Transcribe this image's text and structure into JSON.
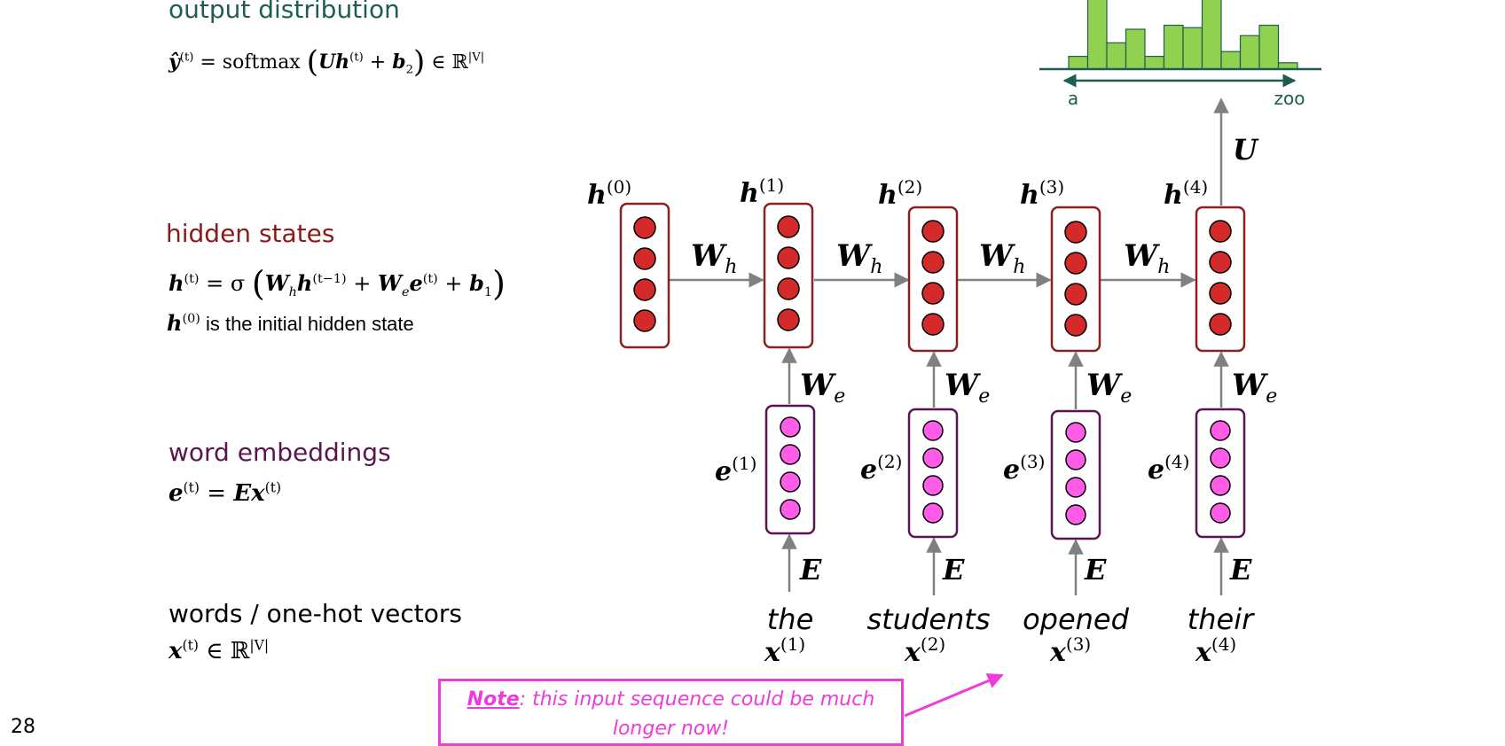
{
  "left_panel": {
    "output_title": "output distribution",
    "output_formula": {
      "yhat": "ŷ",
      "t": "(t)",
      "eq": " = softmax ",
      "lparen": "(",
      "U": "U",
      "h": "h",
      "plus": " + ",
      "b": "b",
      "two": "2",
      "rparen": ")",
      "in": " ∈ ℝ",
      "v": "|V|"
    },
    "hidden_title": "hidden states",
    "hidden_formula": {
      "h": "h",
      "t": "(t)",
      "eq": " = σ ",
      "lparen": "(",
      "W": "W",
      "sub_h": "h",
      "tm1": "(t−1)",
      "plus": " + ",
      "sub_e": "e",
      "e": "e",
      "b": "b",
      "one": "1",
      "rparen": ")"
    },
    "initial_state": {
      "h": "h",
      "zero": "(0)",
      "text": " is the initial hidden state"
    },
    "embed_title": "word embeddings",
    "embed_formula": {
      "e": "e",
      "t": "(t)",
      "eq": " = ",
      "E": "E",
      "x": "x"
    },
    "words_title": "words / one-hot vectors",
    "words_formula": {
      "x": "x",
      "t": "(t)",
      "in": " ∈ ℝ",
      "v": "|V|"
    }
  },
  "diagram": {
    "hidden_labels": [
      {
        "base": "h",
        "sup": "(0)"
      },
      {
        "base": "h",
        "sup": "(1)"
      },
      {
        "base": "h",
        "sup": "(2)"
      },
      {
        "base": "h",
        "sup": "(3)"
      },
      {
        "base": "h",
        "sup": "(4)"
      }
    ],
    "embed_labels": [
      {
        "base": "e",
        "sup": "(1)"
      },
      {
        "base": "e",
        "sup": "(2)"
      },
      {
        "base": "e",
        "sup": "(3)"
      },
      {
        "base": "e",
        "sup": "(4)"
      }
    ],
    "wh_label": {
      "base": "W",
      "sub": "h"
    },
    "we_label": {
      "base": "W",
      "sub": "e"
    },
    "e_matrix": "E",
    "u_matrix": "U",
    "words": [
      "the",
      "students",
      "opened",
      "their"
    ],
    "input_labels": [
      {
        "base": "x",
        "sup": "(1)"
      },
      {
        "base": "x",
        "sup": "(2)"
      },
      {
        "base": "x",
        "sup": "(3)"
      },
      {
        "base": "x",
        "sup": "(4)"
      }
    ],
    "histogram": {
      "axis_start": "a",
      "axis_end": "zoo",
      "values": [
        0.16,
        1.0,
        0.33,
        0.5,
        0.16,
        0.55,
        0.52,
        1.0,
        0.22,
        0.42,
        0.55,
        0.08
      ]
    }
  },
  "note": {
    "label": "Note",
    "text": ": this input sequence could be much longer now!"
  },
  "page_number": "28",
  "colors": {
    "output_title": "#1e5e52",
    "hidden_title": "#8b1a1a",
    "embed_title": "#5a1550",
    "hidden_box": "#8b2020",
    "hidden_dot": "#d42a2a",
    "embed_box": "#5a1550",
    "embed_dot": "#ff5ce8",
    "histogram_bar": "#92d050",
    "axis": "#1e5e52",
    "arrow": "#808080",
    "note": "#ee3bd9"
  }
}
